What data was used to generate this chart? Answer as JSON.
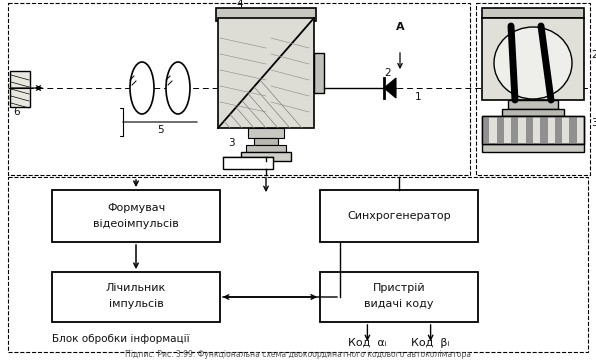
{
  "fig_width": 5.96,
  "fig_height": 3.63,
  "dpi": 100,
  "bg_color": "#ffffff",
  "tc": "#111111",
  "box1_line1": "Формувач",
  "box1_line2": "відеоімпульсів",
  "box2_label": "Синхрогенератор",
  "box3_line1": "Лічильник",
  "box3_line2": "імпульсів",
  "box4_line1": "Пристрій",
  "box4_line2": "видачі коду",
  "bottom_label": "Блок обробки інформації",
  "code_alpha": "Код  αᵢ",
  "code_beta": "Код  βᵢ",
  "label_A": "A",
  "label_1": "1",
  "label_2": "2",
  "label_3": "3",
  "label_4": "4",
  "label_5": "5",
  "label_6": "6"
}
